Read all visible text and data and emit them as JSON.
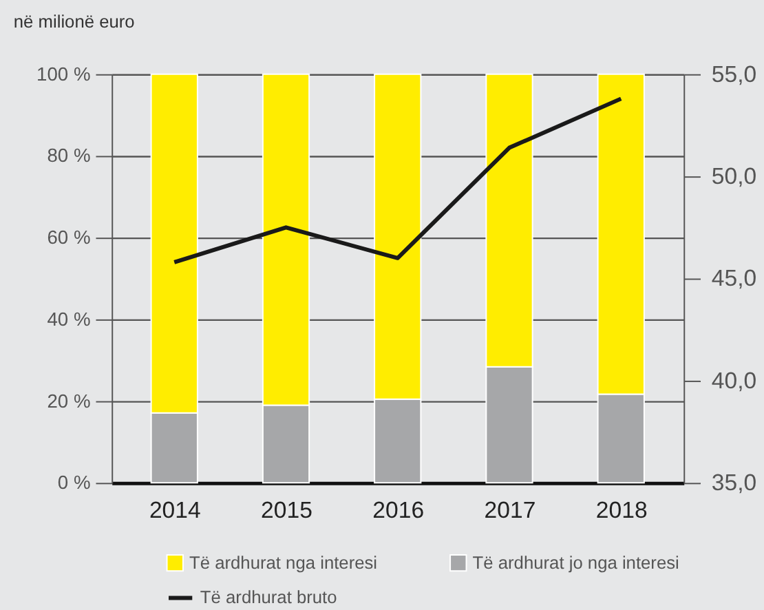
{
  "chart_data": {
    "type": "bar",
    "title": "në milionë euro",
    "stacked": true,
    "categories": [
      "2014",
      "2015",
      "2016",
      "2017",
      "2018"
    ],
    "series": [
      {
        "name": "Të ardhurat jo nga interesi",
        "color": "#a6a7a9",
        "values": [
          17.1,
          19.0,
          20.5,
          28.4,
          21.7
        ]
      },
      {
        "name": "Të ardhurat nga interesi",
        "color": "#ffed00",
        "values": [
          82.9,
          81.0,
          79.5,
          71.6,
          78.3
        ]
      },
      {
        "name": "Të ardhurat bruto",
        "type": "line",
        "axis": "y2",
        "color": "#1a1a1a",
        "values": [
          45.8,
          47.5,
          46.0,
          51.4,
          53.8
        ]
      }
    ],
    "ylim": [
      0,
      100
    ],
    "yticks": [
      {
        "value": 0,
        "label": "0 %"
      },
      {
        "value": 20,
        "label": "20 %"
      },
      {
        "value": 40,
        "label": "40 %"
      },
      {
        "value": 60,
        "label": "60 %"
      },
      {
        "value": 80,
        "label": "80 %"
      },
      {
        "value": 100,
        "label": "100 %"
      }
    ],
    "y2lim": [
      35,
      55
    ],
    "y2ticks": [
      {
        "value": 35,
        "label": "35,0"
      },
      {
        "value": 40,
        "label": "40,0"
      },
      {
        "value": 45,
        "label": "45,0"
      },
      {
        "value": 50,
        "label": "50,0"
      },
      {
        "value": 55,
        "label": "55,0"
      }
    ],
    "grid": "y",
    "legend": "bottom",
    "line_style": "solid",
    "marker": "none"
  }
}
